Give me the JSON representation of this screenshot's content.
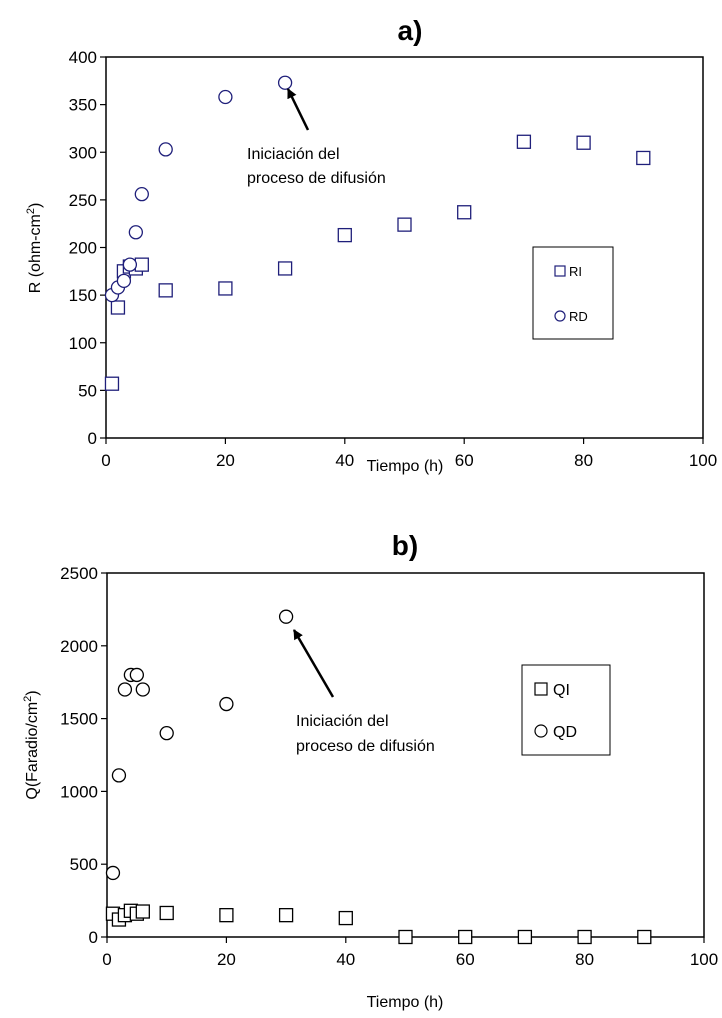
{
  "chart_data": [
    {
      "type": "scatter",
      "title": "a)",
      "xlabel": "Tiempo (h)",
      "ylabel_main": "R (ohm-cm",
      "ylabel_sup": "2",
      "ylabel_close": ")",
      "xlim": [
        0,
        100
      ],
      "ylim": [
        0,
        400
      ],
      "xticks": [
        0,
        20,
        40,
        60,
        80,
        100
      ],
      "yticks": [
        0,
        50,
        100,
        150,
        200,
        250,
        300,
        350,
        400
      ],
      "grid": false,
      "legend_position": "right-middle",
      "series": [
        {
          "name": "RI",
          "marker": "square",
          "color": "#1f1f7a",
          "x": [
            1,
            2,
            3,
            4,
            5,
            6,
            10,
            20,
            30,
            40,
            50,
            60,
            70,
            80,
            90
          ],
          "y": [
            57,
            137,
            175,
            180,
            178,
            182,
            155,
            157,
            178,
            213,
            224,
            237,
            311,
            310,
            294
          ]
        },
        {
          "name": "RD",
          "marker": "circle",
          "color": "#1f1f7a",
          "x": [
            1,
            2,
            3,
            4,
            5,
            6,
            10,
            20,
            30
          ],
          "y": [
            150,
            158,
            165,
            182,
            216,
            256,
            303,
            358,
            373
          ]
        }
      ],
      "annotation": {
        "line1": "Iniciación del",
        "line2": "proceso de difusión",
        "arrow_target": [
          30,
          373
        ]
      }
    },
    {
      "type": "scatter",
      "title": "b)",
      "xlabel": "Tiempo (h)",
      "ylabel_main": "Q(Faradio/cm",
      "ylabel_sup": "2",
      "ylabel_close": ")",
      "xlim": [
        0,
        100
      ],
      "ylim": [
        0,
        2500
      ],
      "xticks": [
        0,
        20,
        40,
        60,
        80,
        100
      ],
      "yticks": [
        0,
        500,
        1000,
        1500,
        2000,
        2500
      ],
      "grid": false,
      "legend_position": "right-middle",
      "series": [
        {
          "name": "QI",
          "marker": "square",
          "color": "#000000",
          "x": [
            1,
            2,
            3,
            4,
            5,
            6,
            10,
            20,
            30,
            40,
            50,
            60,
            70,
            80,
            90
          ],
          "y": [
            160,
            120,
            150,
            180,
            160,
            175,
            165,
            150,
            150,
            130,
            0,
            0,
            0,
            0,
            0
          ]
        },
        {
          "name": "QD",
          "marker": "circle",
          "color": "#000000",
          "x": [
            1,
            2,
            3,
            4,
            5,
            6,
            10,
            20,
            30
          ],
          "y": [
            440,
            1110,
            1700,
            1800,
            1800,
            1700,
            1400,
            1600,
            2200
          ]
        }
      ],
      "annotation": {
        "line1": "Iniciación del",
        "line2": "proceso de difusión",
        "arrow_target": [
          30,
          2200
        ]
      }
    }
  ]
}
